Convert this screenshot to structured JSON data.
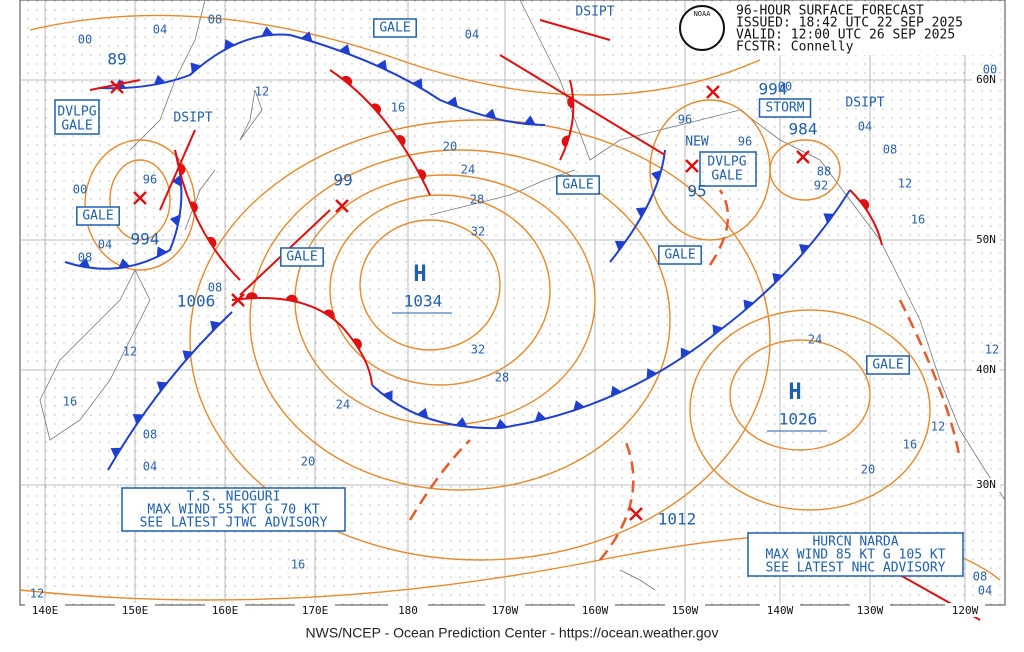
{
  "header": {
    "lines": [
      "96-HOUR SURFACE FORECAST",
      "ISSUED: 18:42 UTC 22 SEP 2025",
      "VALID:  12:00 UTC 26 SEP 2025",
      "FCSTR:  Connelly"
    ],
    "logo": "NOAA"
  },
  "longitudes": [
    "140E",
    "150E",
    "160E",
    "170E",
    "180",
    "170W",
    "160W",
    "150W",
    "140W",
    "130W",
    "120W"
  ],
  "latitudes": [
    "60N",
    "50N",
    "40N",
    "30N"
  ],
  "highs": [
    {
      "symbol": "H",
      "pressure": "1034"
    },
    {
      "symbol": "H",
      "pressure": "1026"
    }
  ],
  "lows": [
    "89",
    "994",
    "1006",
    "99",
    "994",
    "95",
    "984",
    "88",
    "92",
    "1012"
  ],
  "warnings": [
    "GALE",
    "GALE",
    "GALE",
    "GALE",
    "GALE",
    "GALE",
    "STORM",
    "DVLPG",
    "GALE",
    "DVLPG",
    "GALE",
    "DSIPT",
    "DSIPT",
    "DSIPT",
    "NEW"
  ],
  "isobar_labels": [
    "00",
    "04",
    "08",
    "12",
    "16",
    "20",
    "24",
    "28",
    "32",
    "32",
    "28",
    "24",
    "20",
    "16",
    "12",
    "16",
    "08",
    "04",
    "08",
    "04",
    "08",
    "00",
    "96",
    "04",
    "00",
    "96",
    "96",
    "04",
    "08",
    "12",
    "16",
    "24",
    "20",
    "16",
    "12",
    "12",
    "08",
    "04",
    "00",
    "12"
  ],
  "advisories": [
    {
      "lines": [
        "T.S. NEOGURI",
        "MAX WIND 55 KT G 70 KT",
        "SEE LATEST JTWC ADVISORY"
      ]
    },
    {
      "lines": [
        "HURCN NARDA",
        "MAX WIND 85 KT G 105 KT",
        "SEE LATEST NHC ADVISORY"
      ]
    }
  ],
  "footer": "NWS/NCEP - Ocean Prediction Center - https://ocean.weather.gov"
}
